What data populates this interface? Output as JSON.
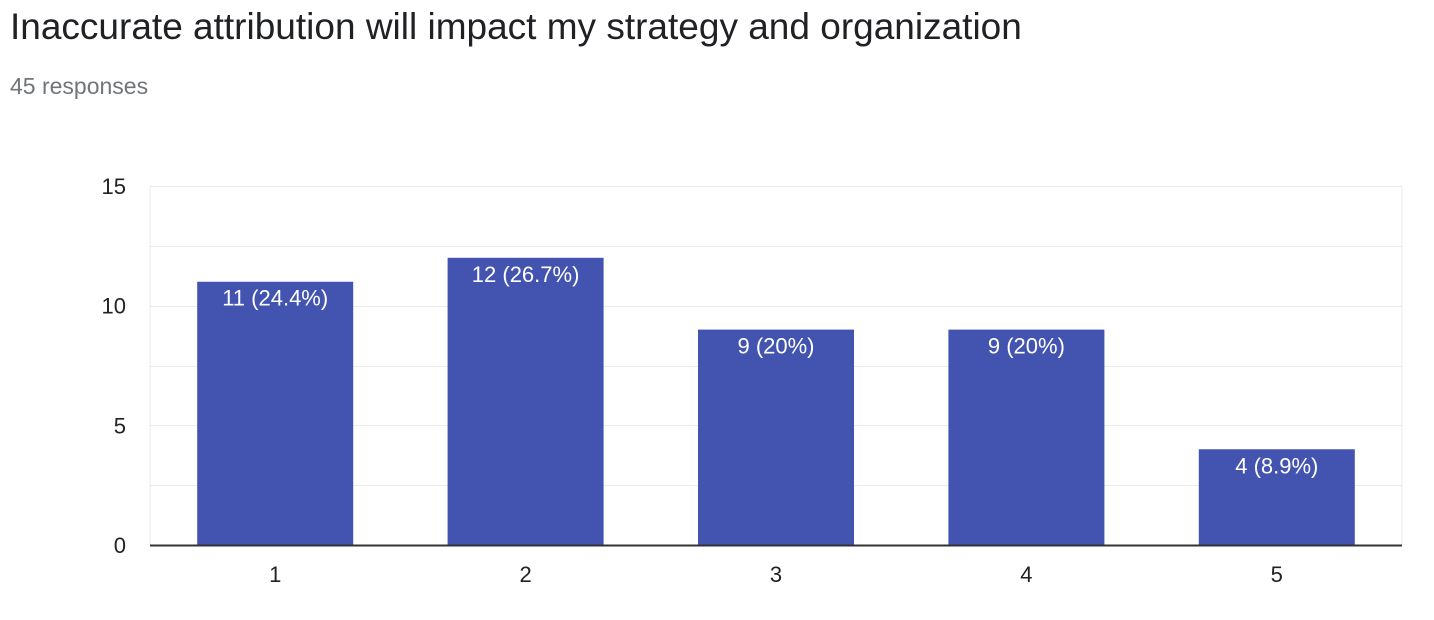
{
  "header": {
    "title": "Inaccurate attribution will impact my strategy and organization",
    "responses": "45 responses"
  },
  "colors": {
    "bar": "#4353b0",
    "gridline": "#ebebeb",
    "axis": "#333333",
    "tick_text": "#222222",
    "data_label": "#ffffff"
  },
  "chart_data": {
    "type": "bar",
    "categories": [
      "1",
      "2",
      "3",
      "4",
      "5"
    ],
    "values": [
      11,
      12,
      9,
      9,
      4
    ],
    "data_labels": [
      "11 (24.4%)",
      "12 (26.7%)",
      "9 (20%)",
      "9 (20%)",
      "4 (8.9%)"
    ],
    "ylim": [
      0,
      15
    ],
    "yticks": [
      0,
      5,
      10,
      15
    ],
    "minor_gridlines": true,
    "legend": "none"
  }
}
